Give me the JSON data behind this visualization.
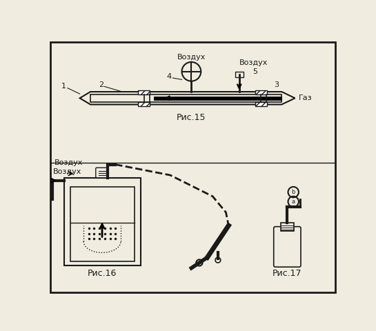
{
  "bg_color": "#f0ede0",
  "border_color": "#1a1a1a",
  "line_color": "#1a1a1a",
  "hatch_color": "#1a1a1a",
  "title_fig15": "Рис.15",
  "title_fig16": "Рис.16",
  "title_fig17": "Рис.17",
  "label_vozduh_top": "Воздух",
  "label_gaz": "Газ",
  "label_vozduh_left": "Воздух",
  "label_1": "1",
  "label_2": "2",
  "label_3": "3",
  "label_4": "4",
  "label_5": "5",
  "font_size_label": 8,
  "font_size_caption": 9
}
